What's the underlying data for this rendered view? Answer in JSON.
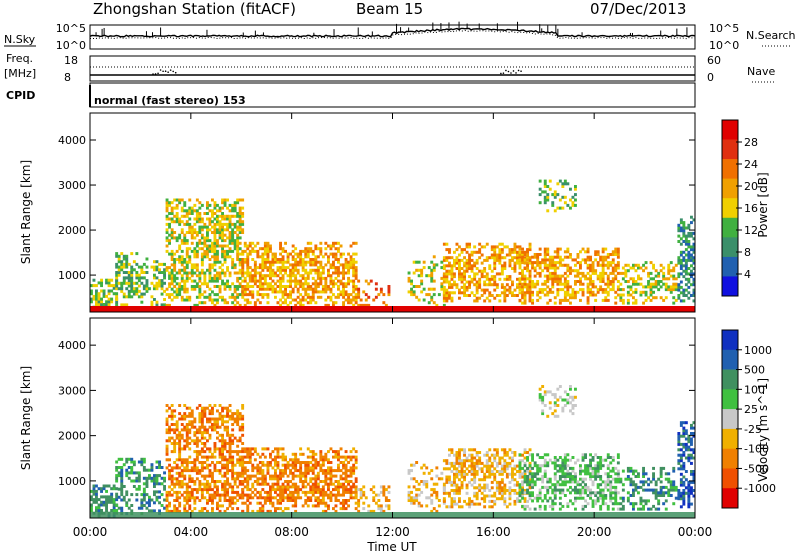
{
  "header": {
    "station": "Zhongshan Station (fitACF)",
    "beam": "Beam 15",
    "date": "07/Dec/2013"
  },
  "top_panel": {
    "left_label": "N.Sky",
    "left_ticks": [
      "10^5",
      "10^0"
    ],
    "right_ticks": [
      "10^5",
      "10^0"
    ],
    "right_label": "N.Search"
  },
  "freq_panel": {
    "left_label_1": "Freq.",
    "left_label_2": "[MHz]",
    "left_ticks": [
      "18",
      "8"
    ],
    "right_ticks": [
      "60",
      "0"
    ],
    "right_label": "Nave"
  },
  "cpid_panel": {
    "label": "CPID",
    "text": "normal (fast stereo) 153"
  },
  "colors": {
    "power": [
      "#1010e0",
      "#2060b0",
      "#3a8f6a",
      "#40b040",
      "#f0d000",
      "#f0a000",
      "#f07000",
      "#e03010",
      "#e00000"
    ],
    "velocity": [
      "#e00000",
      "#f05000",
      "#f08000",
      "#f0b000",
      "#c8c8c8",
      "#40c040",
      "#409060",
      "#2060b0",
      "#1030c0"
    ]
  },
  "chart_data": [
    {
      "type": "heatmap",
      "title": "Power",
      "ylabel": "Slant Range [km]",
      "y_ticks": [
        "1000",
        "2000",
        "3000",
        "4000"
      ],
      "x_ticks": [
        "00:00",
        "04:00",
        "08:00",
        "12:00",
        "16:00",
        "20:00",
        "00:00"
      ],
      "xlabel": "",
      "colorbar_label": "Power [dB]",
      "colorbar_ticks": [
        "4",
        "8",
        "12",
        "16",
        "20",
        "24",
        "28"
      ],
      "ylim": [
        180,
        4600
      ],
      "x_hours": [
        0,
        24
      ]
    },
    {
      "type": "heatmap",
      "title": "Velocity",
      "ylabel": "Slant Range [km]",
      "y_ticks": [
        "1000",
        "2000",
        "3000",
        "4000"
      ],
      "x_ticks": [
        "00:00",
        "04:00",
        "08:00",
        "12:00",
        "16:00",
        "20:00",
        "00:00"
      ],
      "xlabel": "Time UT",
      "colorbar_label": "Velocity [m s^-1]",
      "colorbar_ticks": [
        "1000",
        "500",
        "100",
        "25",
        "-25",
        "-100",
        "-500",
        "-1000"
      ],
      "ylim": [
        180,
        4600
      ],
      "x_hours": [
        0,
        24
      ]
    }
  ]
}
